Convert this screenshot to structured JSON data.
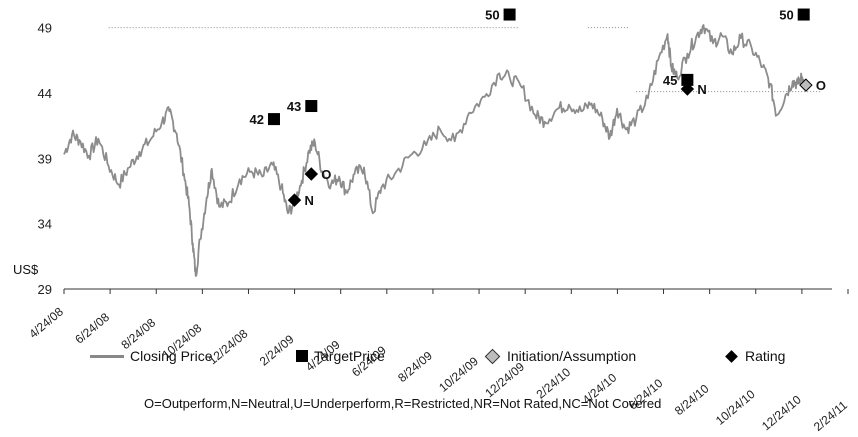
{
  "chart_data": {
    "type": "line",
    "ylabel": "US$",
    "ylim": [
      29,
      50.5
    ],
    "yticks": [
      29,
      34,
      39,
      44,
      49
    ],
    "x_tick_labels": [
      "4/24/08",
      "6/24/08",
      "8/24/08",
      "10/24/08",
      "12/24/08",
      "2/24/09",
      "4/24/09",
      "6/24/09",
      "8/24/09",
      "10/24/09",
      "12/24/09",
      "2/24/10",
      "4/24/10",
      "6/24/10",
      "8/24/10",
      "10/24/10",
      "12/24/10",
      "2/24/11"
    ],
    "x_start": "2008-04-24",
    "x_end": "2011-02-24",
    "series": [
      {
        "name": "Closing Price",
        "color": "#8c8c8c",
        "points": [
          [
            "2008-04-24",
            39.3
          ],
          [
            "2008-05-05",
            40.8
          ],
          [
            "2008-05-15",
            40.4
          ],
          [
            "2008-05-28",
            39.2
          ],
          [
            "2008-06-10",
            40.5
          ],
          [
            "2008-06-24",
            38.4
          ],
          [
            "2008-07-08",
            37.0
          ],
          [
            "2008-07-22",
            38.3
          ],
          [
            "2008-08-05",
            39.5
          ],
          [
            "2008-08-20",
            40.4
          ],
          [
            "2008-09-05",
            41.8
          ],
          [
            "2008-09-15",
            42.6
          ],
          [
            "2008-09-25",
            40.9
          ],
          [
            "2008-10-05",
            37.8
          ],
          [
            "2008-10-12",
            35.4
          ],
          [
            "2008-10-17",
            32.5
          ],
          [
            "2008-10-21",
            30.0
          ],
          [
            "2008-10-27",
            32.8
          ],
          [
            "2008-11-05",
            36.0
          ],
          [
            "2008-11-12",
            38.2
          ],
          [
            "2008-11-22",
            35.3
          ],
          [
            "2008-12-05",
            35.6
          ],
          [
            "2008-12-20",
            37.4
          ],
          [
            "2009-01-05",
            38.0
          ],
          [
            "2009-01-20",
            37.6
          ],
          [
            "2009-02-03",
            38.5
          ],
          [
            "2009-02-15",
            36.8
          ],
          [
            "2009-02-24",
            34.8
          ],
          [
            "2009-03-05",
            35.6
          ],
          [
            "2009-03-15",
            37.3
          ],
          [
            "2009-03-25",
            39.6
          ],
          [
            "2009-04-02",
            40.2
          ],
          [
            "2009-04-12",
            38.0
          ],
          [
            "2009-04-24",
            37.0
          ],
          [
            "2009-05-05",
            37.6
          ],
          [
            "2009-05-15",
            36.4
          ],
          [
            "2009-05-26",
            37.8
          ],
          [
            "2009-06-08",
            38.3
          ],
          [
            "2009-06-20",
            34.8
          ],
          [
            "2009-07-02",
            36.8
          ],
          [
            "2009-07-20",
            37.8
          ],
          [
            "2009-08-10",
            39.2
          ],
          [
            "2009-09-01",
            40.0
          ],
          [
            "2009-09-20",
            41.2
          ],
          [
            "2009-10-10",
            40.3
          ],
          [
            "2009-10-30",
            42.5
          ],
          [
            "2009-11-20",
            43.7
          ],
          [
            "2009-12-10",
            45.5
          ],
          [
            "2009-12-24",
            45.2
          ],
          [
            "2010-01-10",
            44.4
          ],
          [
            "2010-01-28",
            42.3
          ],
          [
            "2010-02-10",
            41.8
          ],
          [
            "2010-02-28",
            42.8
          ],
          [
            "2010-03-15",
            43.1
          ],
          [
            "2010-04-01",
            42.6
          ],
          [
            "2010-04-15",
            43.2
          ],
          [
            "2010-04-30",
            42.0
          ],
          [
            "2010-05-10",
            40.6
          ],
          [
            "2010-05-20",
            42.8
          ],
          [
            "2010-06-01",
            41.2
          ],
          [
            "2010-06-15",
            42.0
          ],
          [
            "2010-07-01",
            43.6
          ],
          [
            "2010-07-15",
            46.5
          ],
          [
            "2010-07-28",
            48.5
          ],
          [
            "2010-08-02",
            46.0
          ],
          [
            "2010-08-10",
            45.2
          ],
          [
            "2010-08-24",
            47.0
          ],
          [
            "2010-09-05",
            48.3
          ],
          [
            "2010-09-15",
            49.2
          ],
          [
            "2010-09-28",
            47.8
          ],
          [
            "2010-10-10",
            48.4
          ],
          [
            "2010-10-24",
            47.0
          ],
          [
            "2010-11-05",
            48.2
          ],
          [
            "2010-11-20",
            47.4
          ],
          [
            "2010-12-05",
            46.0
          ],
          [
            "2010-12-15",
            44.7
          ],
          [
            "2010-12-24",
            42.3
          ],
          [
            "2011-01-05",
            43.8
          ],
          [
            "2011-01-15",
            44.9
          ],
          [
            "2011-01-22",
            44.7
          ],
          [
            "2011-01-28",
            45.2
          ],
          [
            "2011-02-02",
            44.6
          ]
        ]
      }
    ],
    "target_prices": [
      {
        "date": "2009-02-05",
        "value": 42,
        "label": "42"
      },
      {
        "date": "2009-03-28",
        "value": 43,
        "label": "43"
      },
      {
        "date": "2009-12-24",
        "value": 50,
        "label": "50"
      },
      {
        "date": "2010-08-24",
        "value": 45,
        "label": "45"
      },
      {
        "date": "2011-01-30",
        "value": 50,
        "label": "50"
      }
    ],
    "ratings": [
      {
        "date": "2009-03-05",
        "value": 35.8,
        "label": "N",
        "type": "Rating"
      },
      {
        "date": "2009-03-28",
        "value": 37.8,
        "label": "O",
        "type": "Rating"
      },
      {
        "date": "2010-08-24",
        "value": 44.3,
        "label": "N",
        "type": "Rating"
      },
      {
        "date": "2011-02-02",
        "value": 44.6,
        "label": "O",
        "type": "Initiation/Assumption"
      }
    ],
    "dotted_reference_lines": [
      {
        "from": "2008-06-24",
        "to": "2010-01-05",
        "value": 49
      },
      {
        "from": "2010-04-10",
        "to": "2010-06-05",
        "value": 49
      },
      {
        "from": "2010-06-15",
        "to": "2011-02-24",
        "value": 44.1
      }
    ],
    "legend": [
      {
        "label": "Closing Price",
        "marker": "line"
      },
      {
        "label": "TargetPrice",
        "marker": "square"
      },
      {
        "label": "Initiation/Assumption",
        "marker": "grey-diamond"
      },
      {
        "label": "Rating",
        "marker": "black-diamond"
      }
    ],
    "footnote": "O=Outperform,N=Neutral,U=Underperform,R=Restricted,NR=Not Rated,NC=Not Covered"
  }
}
